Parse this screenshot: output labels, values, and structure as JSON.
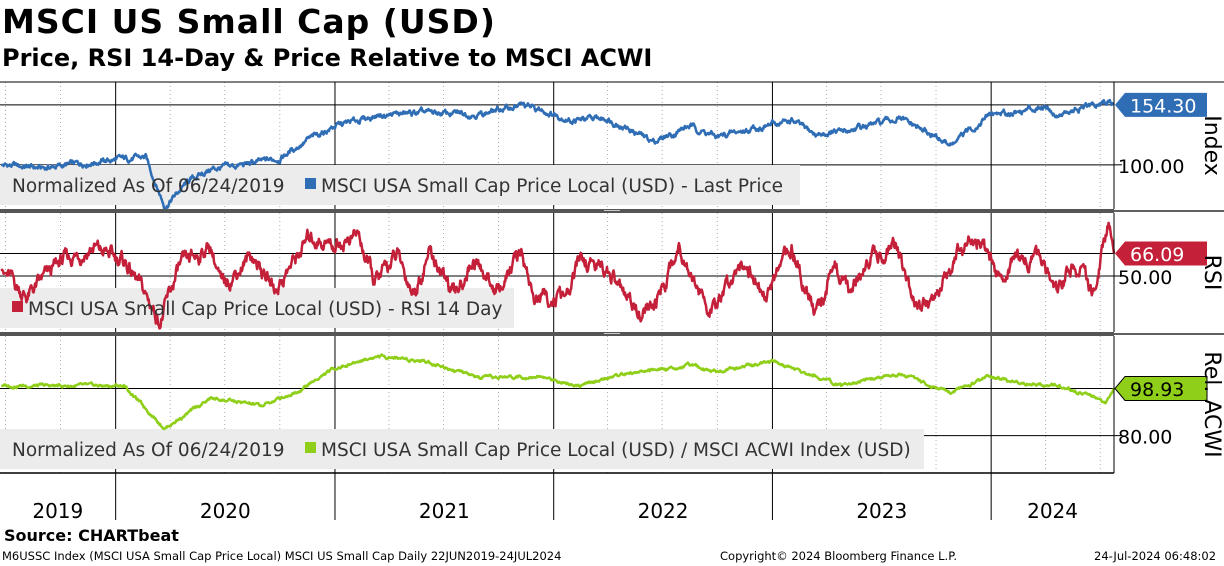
{
  "header": {
    "title": "MSCI US Small Cap (USD)",
    "subtitle": "Price, RSI 14-Day & Price Relative to MSCI ACWI"
  },
  "source": "Source: CHARTbeat",
  "footer": {
    "left": "M6USSC Index (MSCI USA Small Cap Price Local) MSCI US Small Cap  Daily 22JUN2019-24JUL2024",
    "center": "Copyright© 2024 Bloomberg Finance L.P.",
    "right": "24-Jul-2024 06:48:02"
  },
  "chart_data": [
    {
      "type": "line",
      "panel": "price",
      "ylabel": "Index",
      "yticks": [
        "100.00"
      ],
      "ylim": [
        60,
        175
      ],
      "legend": [
        "Normalized As Of 06/24/2019",
        "MSCI USA Small Cap Price Local (USD) - Last Price"
      ],
      "last_value_label": "154.30",
      "color": "#2f6db5",
      "series": [
        {
          "name": "MSCI USA Small Cap Price Local (USD) - Last Price",
          "x": [
            "2019-06-24",
            "2019-09-01",
            "2019-12-01",
            "2020-02-20",
            "2020-03-23",
            "2020-05-01",
            "2020-06-08",
            "2020-08-01",
            "2020-10-01",
            "2020-11-15",
            "2021-01-01",
            "2021-03-15",
            "2021-06-01",
            "2021-09-01",
            "2021-11-08",
            "2021-12-20",
            "2022-02-01",
            "2022-04-01",
            "2022-06-17",
            "2022-08-16",
            "2022-10-01",
            "2022-12-01",
            "2023-02-02",
            "2023-03-15",
            "2023-05-01",
            "2023-07-31",
            "2023-10-27",
            "2023-12-31",
            "2024-02-15",
            "2024-04-01",
            "2024-04-19",
            "2024-06-15",
            "2024-07-17",
            "2024-07-24"
          ],
          "values": [
            100,
            97,
            103,
            107,
            62,
            85,
            96,
            100,
            106,
            122,
            135,
            145,
            147,
            146,
            154,
            148,
            140,
            142,
            121,
            135,
            125,
            133,
            140,
            127,
            130,
            142,
            118,
            146,
            148,
            154,
            145,
            152,
            158,
            154.3
          ]
        }
      ]
    },
    {
      "type": "line",
      "panel": "rsi",
      "ylabel": "RSI",
      "yticks": [
        "50.00"
      ],
      "ylim": [
        10,
        95
      ],
      "legend": [
        "MSCI USA Small Cap Price Local (USD) - RSI 14 Day"
      ],
      "last_value_label": "66.09",
      "color": "#c4203a",
      "series": [
        {
          "name": "MSCI USA Small Cap Price Local (USD) - RSI 14 Day",
          "x": [
            "2019-06-24",
            "2019-08-05",
            "2019-10-01",
            "2019-11-25",
            "2020-01-17",
            "2020-03-16",
            "2020-04-15",
            "2020-06-08",
            "2020-06-26",
            "2020-08-15",
            "2020-09-23",
            "2020-11-20",
            "2021-01-01",
            "2021-02-08",
            "2021-03-08",
            "2021-04-15",
            "2021-05-12",
            "2021-06-08",
            "2021-07-19",
            "2021-08-20",
            "2021-09-30",
            "2021-11-08",
            "2021-12-01",
            "2022-01-24",
            "2022-02-15",
            "2022-03-29",
            "2022-05-11",
            "2022-06-17",
            "2022-07-29",
            "2022-09-12",
            "2022-09-30",
            "2022-11-10",
            "2022-12-22",
            "2023-02-02",
            "2023-03-13",
            "2023-04-15",
            "2023-05-10",
            "2023-06-12",
            "2023-07-27",
            "2023-08-25",
            "2023-09-29",
            "2023-10-27",
            "2023-11-14",
            "2023-12-15",
            "2024-01-17",
            "2024-02-15",
            "2024-03-28",
            "2024-04-19",
            "2024-05-15",
            "2024-06-20",
            "2024-07-17",
            "2024-07-24"
          ],
          "values": [
            55,
            35,
            60,
            70,
            60,
            18,
            55,
            72,
            42,
            65,
            40,
            78,
            72,
            80,
            45,
            65,
            38,
            68,
            35,
            62,
            38,
            68,
            32,
            35,
            62,
            55,
            28,
            25,
            72,
            30,
            25,
            65,
            35,
            70,
            25,
            55,
            40,
            65,
            70,
            30,
            28,
            60,
            72,
            75,
            48,
            66,
            60,
            35,
            58,
            40,
            88,
            66.09
          ]
        }
      ]
    },
    {
      "type": "line",
      "panel": "relative",
      "ylabel": "Rel. ACWI",
      "yticks": [
        "80.00"
      ],
      "ylim": [
        65,
        120
      ],
      "legend": [
        "Normalized As Of 06/24/2019",
        "MSCI USA Small Cap Price Local (USD) / MSCI ACWI Index (USD)"
      ],
      "last_value_label": "98.93",
      "color": "#8fcf1a",
      "series": [
        {
          "name": "MSCI USA Small Cap Price Local (USD) / MSCI ACWI Index (USD)",
          "x": [
            "2019-06-24",
            "2019-10-01",
            "2020-01-15",
            "2020-03-23",
            "2020-06-08",
            "2020-09-01",
            "2020-11-01",
            "2020-12-31",
            "2021-03-15",
            "2021-06-01",
            "2021-09-01",
            "2021-12-01",
            "2022-02-15",
            "2022-05-01",
            "2022-08-16",
            "2022-10-01",
            "2022-12-31",
            "2023-02-02",
            "2023-05-01",
            "2023-07-31",
            "2023-10-27",
            "2023-12-27",
            "2024-02-15",
            "2024-04-19",
            "2024-06-15",
            "2024-07-10",
            "2024-07-24"
          ],
          "values": [
            100,
            100,
            100,
            83,
            95,
            92,
            98,
            107,
            112,
            110,
            103,
            104,
            100,
            105,
            108,
            106,
            110,
            107,
            100,
            105,
            97,
            104,
            101,
            100,
            96,
            92,
            98.93
          ]
        }
      ]
    }
  ],
  "x_axis": {
    "years": [
      "2019",
      "2020",
      "2021",
      "2022",
      "2023",
      "2024"
    ],
    "start": "2019-06-22",
    "end": "2024-07-24"
  },
  "colors": {
    "price": "#2f6db5",
    "rsi": "#c4203a",
    "relative": "#8fcf1a",
    "legend_bg": "#ececec"
  }
}
